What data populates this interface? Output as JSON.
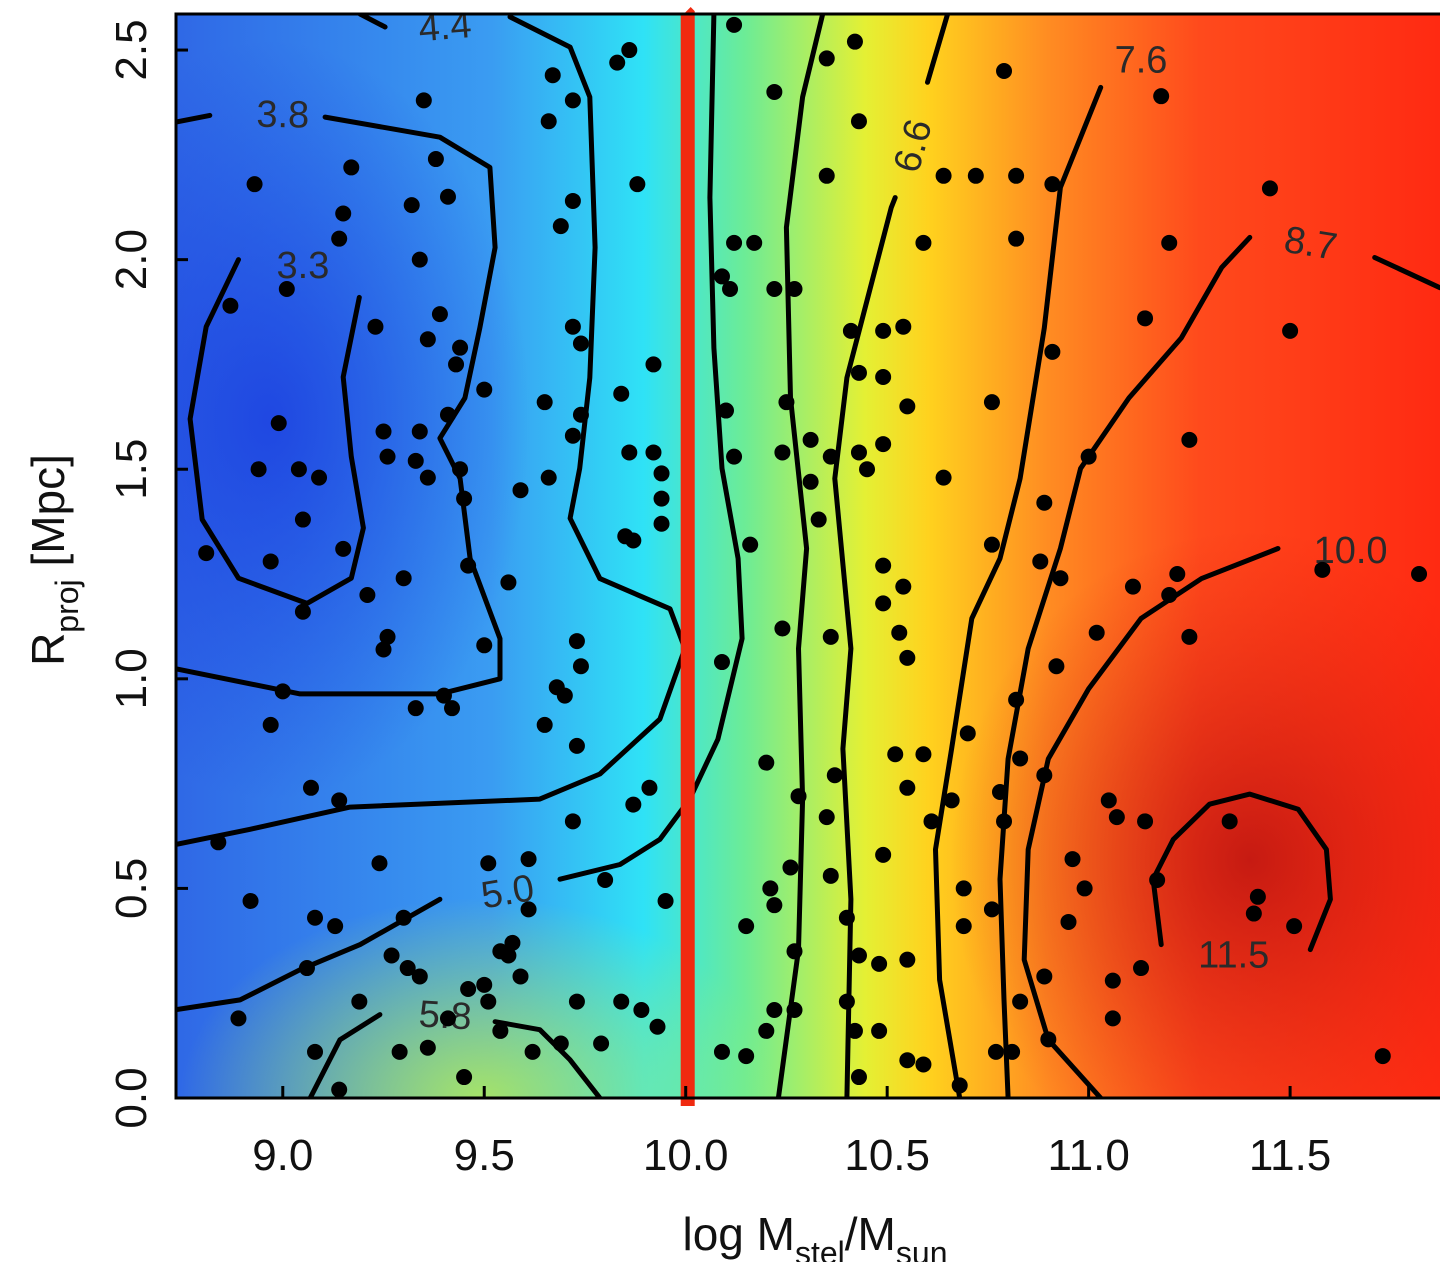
{
  "chart_data": {
    "type": "contour",
    "xlabel": [
      {
        "text": "log M"
      },
      {
        "text": "stel",
        "sub": true
      },
      {
        "text": "/M"
      },
      {
        "text": "sun",
        "sub": true
      }
    ],
    "ylabel": [
      {
        "text": "R"
      },
      {
        "text": "proj",
        "sub": true
      },
      {
        "text": " [Mpc]"
      }
    ],
    "xlim": [
      8.735,
      11.872
    ],
    "ylim": [
      0,
      2.586
    ],
    "xticks": [
      {
        "value": 9,
        "label": "9.0"
      },
      9.5,
      {
        "value": 10,
        "label": "10.0"
      },
      10.5,
      {
        "value": 11,
        "label": "11.0"
      },
      11.5
    ],
    "yticks": [
      {
        "value": 0,
        "label": "0.0"
      },
      0.5,
      {
        "value": 1,
        "label": "1.0"
      },
      1.5,
      {
        "value": 2,
        "label": "2.0"
      },
      2.5
    ],
    "contour_color": "#000000",
    "point_color": "#000000",
    "vline": {
      "x": 10.0,
      "color": "#f02a10"
    },
    "contours": [
      {
        "label": "3.3",
        "label_x": 9.05,
        "label_y": 1.98,
        "x": [
          8.89,
          8.81,
          8.77,
          8.8,
          8.89,
          9.06,
          9.17,
          9.2,
          9.17,
          9.15,
          9.19
        ],
        "y": [
          2.0,
          1.84,
          1.62,
          1.38,
          1.24,
          1.18,
          1.24,
          1.36,
          1.53,
          1.72,
          1.91
        ]
      },
      {
        "label": "3.8",
        "label_x": 9.0,
        "label_y": 2.34,
        "x": [
          8.735,
          8.819,
          null,
          9.105,
          9.39,
          9.514,
          9.527,
          9.489,
          9.452,
          9.39,
          9.44,
          9.465,
          9.539,
          9.539,
          9.39,
          9.043,
          8.735
        ],
        "y": [
          2.328,
          2.344,
          null,
          2.34,
          2.292,
          2.22,
          2.029,
          1.837,
          1.67,
          1.574,
          1.478,
          1.287,
          1.096,
          1.0,
          0.964,
          0.964,
          1.024
        ]
      },
      {
        "label": "4.4",
        "label_x": 9.403,
        "label_y": 2.55,
        "x": [
          9.192,
          9.254,
          null,
          9.564,
          9.713,
          9.762,
          9.775,
          9.762,
          9.737,
          9.713,
          9.787,
          9.961,
          9.998,
          9.936,
          9.787,
          9.638,
          9.167,
          8.919,
          8.735
        ],
        "y": [
          2.586,
          2.555,
          null,
          2.579,
          2.507,
          2.388,
          2.029,
          1.718,
          1.502,
          1.383,
          1.239,
          1.167,
          1.072,
          0.904,
          0.773,
          0.713,
          0.694,
          0.641,
          0.605
        ]
      },
      {
        "label": "5.0",
        "label_x": 9.559,
        "label_y": 0.486,
        "x": [
          8.735,
          8.894,
          9.043,
          9.192,
          9.39,
          null,
          9.688,
          9.837,
          9.936,
          10.01,
          10.08,
          10.14,
          10.13,
          10.09,
          10.07,
          10.06,
          10.07
        ],
        "y": [
          0.211,
          0.234,
          0.306,
          0.366,
          0.474,
          null,
          0.522,
          0.557,
          0.617,
          0.713,
          0.856,
          1.096,
          1.287,
          1.502,
          1.789,
          2.148,
          2.586
        ]
      },
      {
        "label": "5.8",
        "label_x": 9.403,
        "label_y": 0.191,
        "x": [
          9.068,
          9.142,
          9.241,
          null,
          9.527,
          9.638,
          9.713,
          9.787,
          null,
          10.23,
          10.28,
          10.29,
          10.28,
          10.3,
          10.26,
          10.25,
          10.29,
          10.34
        ],
        "y": [
          0,
          0.139,
          0.199,
          null,
          0.182,
          0.163,
          0.091,
          0,
          null,
          0,
          0.354,
          0.713,
          1.072,
          1.311,
          1.67,
          2.077,
          2.388,
          2.586
        ]
      },
      {
        "label": "6.6",
        "label_x": 10.57,
        "label_y": 2.27,
        "x": [
          10.4,
          10.41,
          10.39,
          10.41,
          10.37,
          10.4,
          10.51,
          10.52,
          null,
          10.6,
          10.65
        ],
        "y": [
          0,
          0.474,
          0.833,
          1.072,
          1.478,
          1.718,
          2.124,
          2.148,
          null,
          2.423,
          2.586
        ]
      },
      {
        "label": "7.6",
        "label_x": 11.13,
        "label_y": 2.47,
        "x": [
          10.68,
          10.63,
          10.62,
          10.66,
          10.71,
          10.78,
          10.83,
          10.89,
          10.93,
          11.03
        ],
        "y": [
          0,
          0.282,
          0.593,
          0.833,
          1.144,
          1.287,
          1.478,
          1.837,
          2.172,
          2.411
        ]
      },
      {
        "label": "8.7",
        "label_x": 11.55,
        "label_y": 2.033,
        "x": [
          10.8,
          10.79,
          10.78,
          10.8,
          10.85,
          10.93,
          10.98,
          11.1,
          11.23,
          11.33,
          11.4,
          null,
          11.71,
          11.872
        ],
        "y": [
          0,
          0.234,
          0.522,
          0.809,
          1.072,
          1.311,
          1.502,
          1.67,
          1.813,
          1.981,
          2.053,
          null,
          2.005,
          1.933
        ]
      },
      {
        "label": "10.0",
        "label_x": 11.65,
        "label_y": 1.3,
        "x": [
          11.03,
          10.9,
          10.84,
          10.85,
          10.9,
          11.0,
          11.13,
          11.28,
          11.47
        ],
        "y": [
          0,
          0.139,
          0.33,
          0.593,
          0.809,
          0.976,
          1.144,
          1.239,
          1.311
        ]
      },
      {
        "label": "11.5",
        "label_x": 11.36,
        "label_y": 0.335,
        "x": [
          11.18,
          11.16,
          11.21,
          11.3,
          11.4,
          11.52,
          11.59,
          11.6,
          11.55
        ],
        "y": [
          0.366,
          0.522,
          0.617,
          0.701,
          0.725,
          0.689,
          0.593,
          0.474,
          0.354
        ]
      }
    ],
    "points": {
      "x": [
        8.93,
        8.87,
        9.01,
        8.99,
        8.94,
        9.04,
        9.09,
        9.05,
        8.97,
        9.15,
        9.05,
        8.81,
        8.97,
        9.0,
        8.84,
        8.92,
        8.89,
        9.08,
        9.06,
        9.08,
        9.13,
        9.14,
        9.07,
        9.14,
        9.17,
        9.15,
        9.14,
        9.23,
        9.32,
        9.35,
        9.38,
        9.41,
        9.34,
        9.36,
        9.39,
        9.44,
        9.43,
        9.25,
        9.26,
        9.34,
        9.41,
        9.5,
        9.33,
        9.36,
        9.44,
        9.45,
        9.59,
        9.66,
        9.3,
        9.21,
        9.26,
        9.25,
        9.5,
        9.46,
        9.56,
        9.33,
        9.4,
        9.42,
        9.24,
        9.3,
        9.27,
        9.31,
        9.34,
        9.19,
        9.29,
        9.36,
        9.41,
        9.45,
        9.46,
        9.5,
        9.51,
        9.54,
        9.56,
        9.57,
        9.51,
        9.61,
        9.61,
        9.59,
        9.54,
        9.62,
        9.69,
        9.73,
        9.79,
        9.84,
        9.89,
        9.93,
        9.95,
        9.8,
        9.72,
        9.87,
        9.91,
        9.73,
        9.65,
        9.7,
        9.74,
        9.68,
        9.73,
        9.85,
        9.87,
        9.94,
        9.94,
        9.94,
        9.92,
        9.86,
        9.84,
        9.92,
        9.74,
        9.72,
        9.74,
        9.65,
        9.72,
        9.69,
        9.72,
        9.88,
        9.66,
        9.67,
        9.72,
        9.83,
        9.86,
        10.12,
        10.35,
        10.42,
        10.22,
        10.43,
        10.35,
        10.12,
        10.17,
        10.22,
        10.27,
        10.09,
        10.11,
        10.41,
        10.49,
        10.54,
        10.43,
        10.49,
        10.25,
        10.31,
        10.36,
        10.49,
        10.55,
        10.43,
        10.45,
        10.24,
        10.1,
        10.12,
        10.16,
        10.33,
        10.31,
        10.49,
        10.49,
        10.54,
        10.55,
        10.53,
        10.36,
        10.24,
        10.09,
        10.2,
        10.28,
        10.37,
        10.35,
        10.55,
        10.52,
        10.59,
        10.49,
        10.61,
        10.26,
        10.36,
        10.21,
        10.15,
        10.22,
        10.27,
        10.4,
        10.43,
        10.48,
        10.55,
        10.27,
        10.22,
        10.4,
        10.42,
        10.48,
        10.43,
        10.55,
        10.59,
        10.09,
        10.15,
        10.2,
        10.64,
        10.72,
        10.79,
        10.82,
        10.82,
        10.91,
        10.59,
        11.18,
        11.45,
        11.2,
        11.14,
        11.5,
        10.91,
        10.76,
        11.25,
        11.0,
        10.64,
        10.89,
        10.76,
        10.88,
        10.93,
        11.11,
        11.2,
        11.22,
        11.58,
        11.82,
        10.92,
        11.02,
        11.25,
        10.82,
        10.7,
        10.83,
        10.89,
        10.66,
        10.78,
        10.79,
        10.69,
        10.76,
        10.69,
        10.96,
        10.99,
        11.05,
        11.07,
        11.14,
        11.35,
        11.42,
        11.41,
        11.51,
        11.17,
        11.06,
        11.13,
        10.89,
        10.95,
        10.83,
        10.9,
        10.77,
        10.81,
        10.68,
        11.06,
        11.73
      ],
      "y": [
        2.18,
        1.89,
        1.93,
        1.61,
        1.5,
        1.5,
        1.48,
        1.38,
        1.28,
        1.31,
        1.16,
        1.3,
        0.89,
        0.97,
        0.61,
        0.47,
        0.19,
        0.11,
        0.31,
        0.43,
        0.41,
        0.02,
        0.74,
        0.71,
        2.22,
        2.11,
        2.05,
        1.84,
        2.13,
        2.38,
        2.24,
        2.15,
        2.0,
        1.81,
        1.87,
        1.79,
        1.75,
        1.59,
        1.53,
        1.59,
        1.63,
        1.69,
        1.52,
        1.48,
        1.5,
        1.43,
        1.45,
        1.48,
        1.24,
        1.2,
        1.1,
        1.07,
        1.08,
        1.27,
        1.23,
        0.93,
        0.96,
        0.93,
        0.56,
        0.43,
        0.34,
        0.31,
        0.29,
        0.23,
        0.11,
        0.12,
        0.19,
        0.05,
        0.26,
        0.27,
        0.23,
        0.35,
        0.34,
        0.37,
        0.56,
        0.57,
        0.45,
        0.29,
        0.16,
        0.11,
        0.13,
        0.23,
        0.13,
        0.23,
        0.21,
        0.17,
        0.47,
        0.52,
        0.66,
        0.7,
        0.74,
        0.84,
        0.89,
        0.96,
        1.03,
        0.98,
        1.09,
        1.34,
        1.33,
        1.37,
        1.43,
        1.49,
        1.54,
        1.54,
        1.68,
        1.75,
        1.8,
        1.84,
        1.63,
        1.66,
        1.58,
        2.08,
        2.14,
        2.18,
        2.33,
        2.44,
        2.38,
        2.47,
        2.5,
        2.56,
        2.48,
        2.52,
        2.4,
        2.33,
        2.2,
        2.04,
        2.04,
        1.93,
        1.93,
        1.96,
        1.93,
        1.83,
        1.83,
        1.84,
        1.73,
        1.72,
        1.66,
        1.57,
        1.53,
        1.56,
        1.65,
        1.54,
        1.5,
        1.54,
        1.64,
        1.53,
        1.32,
        1.38,
        1.47,
        1.27,
        1.18,
        1.22,
        1.05,
        1.11,
        1.1,
        1.12,
        1.04,
        0.8,
        0.72,
        0.77,
        0.67,
        0.74,
        0.82,
        0.82,
        0.58,
        0.66,
        0.55,
        0.53,
        0.5,
        0.41,
        0.46,
        0.35,
        0.43,
        0.34,
        0.32,
        0.33,
        0.21,
        0.21,
        0.23,
        0.16,
        0.16,
        0.05,
        0.09,
        0.08,
        0.11,
        0.1,
        0.16,
        2.2,
        2.2,
        2.45,
        2.2,
        2.05,
        2.18,
        2.04,
        2.39,
        2.17,
        2.04,
        1.86,
        1.83,
        1.78,
        1.66,
        1.57,
        1.53,
        1.48,
        1.42,
        1.32,
        1.28,
        1.24,
        1.22,
        1.2,
        1.25,
        1.26,
        1.25,
        1.03,
        1.11,
        1.1,
        0.95,
        0.87,
        0.81,
        0.77,
        0.71,
        0.73,
        0.66,
        0.5,
        0.45,
        0.41,
        0.57,
        0.5,
        0.71,
        0.67,
        0.66,
        0.66,
        0.48,
        0.44,
        0.41,
        0.52,
        0.28,
        0.31,
        0.29,
        0.42,
        0.23,
        0.14,
        0.11,
        0.11,
        0.03,
        0.19,
        0.1
      ]
    }
  }
}
